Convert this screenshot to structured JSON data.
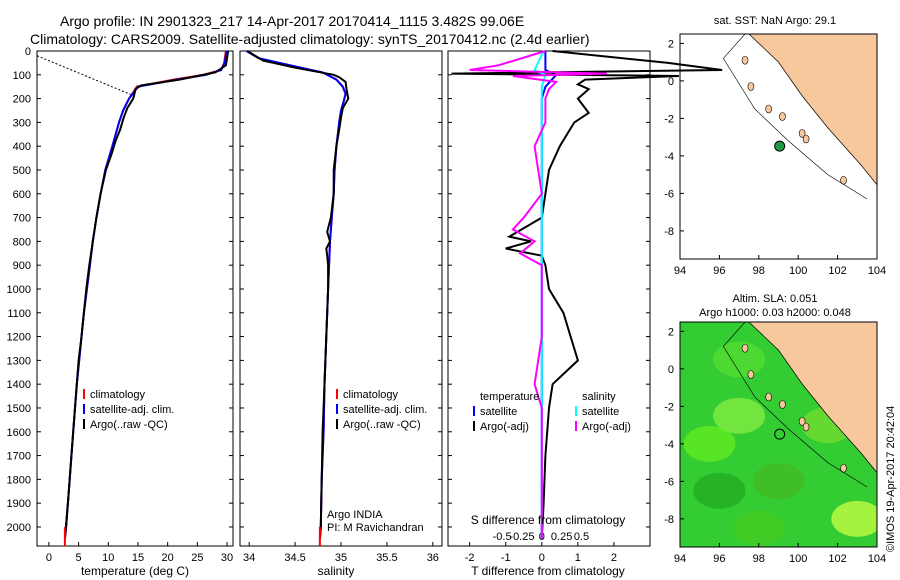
{
  "header": {
    "title_line1": "Argo profile: IN 2901323_217 14-Apr-2017 20170414_1115 3.482S 99.06E",
    "title_line2": "Climatology: CARS2009. Satellite-adjusted climatology: synTS_20170412.nc (2.4d earlier)"
  },
  "footer_credit": "©IMOS 19-Apr-2017 20:42:04",
  "colors": {
    "climatology": "#ff0000",
    "satellite": "#0000ff",
    "argo": "#000000",
    "salinity_satellite": "#00ffff",
    "salinity_argo": "#ff00ff",
    "land": "#f7c89b",
    "ocean_sla": "#33cc33",
    "float_marker": "#229944"
  },
  "chart_data": [
    {
      "type": "line",
      "id": "temperature",
      "xlabel": "temperature (deg C)",
      "ylim": [
        2080,
        0
      ],
      "xlim": [
        -2,
        31
      ],
      "xticks": [
        0,
        5,
        10,
        15,
        20,
        25,
        30
      ],
      "yticks": [
        0,
        100,
        200,
        300,
        400,
        500,
        600,
        700,
        800,
        900,
        1000,
        1100,
        1200,
        1300,
        1400,
        1500,
        1600,
        1700,
        1800,
        1900,
        2000
      ],
      "legend": [
        "climatology",
        "satellite-adj. clim.",
        "Argo(..raw -QC)"
      ],
      "series": [
        {
          "name": "climatology",
          "depth": [
            0,
            50,
            80,
            100,
            120,
            150,
            200,
            250,
            300,
            400,
            500,
            600,
            700,
            800,
            900,
            1000,
            1100,
            1200,
            1300,
            1400,
            1500,
            1600,
            1800,
            2000,
            2050
          ],
          "values": [
            29.8,
            29.5,
            29,
            26,
            21,
            14.8,
            13.5,
            12.5,
            11.8,
            10.7,
            9.5,
            8.7,
            8.0,
            7.4,
            6.9,
            6.4,
            5.9,
            5.5,
            5.1,
            4.7,
            4.4,
            4.1,
            3.5,
            2.9,
            2.7
          ]
        },
        {
          "name": "satellite-adj. clim.",
          "depth": [
            0,
            50,
            80,
            100,
            120,
            150,
            200,
            250,
            300,
            400,
            500,
            600,
            700,
            800,
            900,
            1000,
            1100,
            1200,
            1300,
            1400,
            1500,
            1600,
            1800,
            2000,
            2050
          ],
          "values": [
            29.9,
            29.6,
            29,
            26.5,
            21.5,
            15,
            13.5,
            12.5,
            11.8,
            10.7,
            9.5,
            8.7,
            8.0,
            7.4,
            6.9,
            6.4,
            5.9,
            5.5,
            5.1,
            4.7,
            4.4,
            4.1,
            3.5,
            2.9,
            2.7
          ]
        },
        {
          "name": "Argo(..raw -QC)",
          "depth": [
            0,
            60,
            90,
            120,
            145,
            160,
            200,
            240,
            280,
            330,
            380,
            430,
            500,
            600,
            700,
            800,
            900,
            1000,
            1100,
            1200,
            1300,
            1400,
            1500,
            1700,
            1900,
            2050
          ],
          "values": [
            30.2,
            29.8,
            28,
            22,
            15.5,
            14.6,
            14.2,
            13.2,
            12.6,
            12.0,
            11.2,
            10.6,
            9.6,
            8.7,
            8.0,
            7.4,
            6.8,
            6.3,
            5.9,
            5.5,
            5.0,
            4.7,
            4.4,
            3.8,
            3.2,
            2.7
          ]
        }
      ],
      "annotation_line": {
        "from": [
          -2,
          20
        ],
        "to": [
          14.5,
          190
        ]
      }
    },
    {
      "type": "line",
      "id": "salinity",
      "xlabel": "salinity",
      "ylim": [
        2080,
        0
      ],
      "xlim": [
        33.9,
        36.1
      ],
      "xticks": [
        34,
        34.5,
        35,
        35.5,
        36
      ],
      "xtick_labels": [
        "34",
        "34.5",
        "35",
        "35.5",
        "36"
      ],
      "legend": [
        "climatology",
        "satellite-adj. clim.",
        "Argo(..raw -QC)"
      ],
      "annotations": [
        "Argo INDIA",
        "PI: M Ravichandran"
      ],
      "series": [
        {
          "name": "climatology",
          "depth": [
            0,
            30,
            60,
            90,
            120,
            150,
            180,
            210,
            250,
            300,
            400,
            500,
            600,
            700,
            800,
            900,
            1000,
            1200,
            1400,
            1600,
            1800,
            2000,
            2050
          ],
          "values": [
            33.98,
            34.1,
            34.4,
            34.8,
            34.95,
            35.02,
            35.05,
            35.03,
            35.0,
            34.98,
            34.95,
            34.93,
            34.92,
            34.9,
            34.88,
            34.87,
            34.86,
            34.84,
            34.82,
            34.81,
            34.79,
            34.78,
            34.77
          ]
        },
        {
          "name": "satellite-adj. clim.",
          "depth": [
            0,
            30,
            60,
            90,
            120,
            150,
            180,
            210,
            250,
            300,
            400,
            500,
            600,
            700,
            800,
            900,
            1000,
            1200,
            1400,
            1600,
            1800,
            2000,
            2050
          ],
          "values": [
            33.97,
            34.1,
            34.45,
            34.8,
            34.95,
            35.02,
            35.05,
            35.03,
            35.0,
            34.98,
            34.95,
            34.93,
            34.92,
            34.9,
            34.88,
            34.87,
            34.86,
            34.84,
            34.82,
            34.81,
            34.79,
            34.78,
            34.77
          ]
        },
        {
          "name": "Argo(..raw -QC)",
          "depth": [
            0,
            40,
            70,
            100,
            110,
            130,
            160,
            200,
            240,
            280,
            330,
            400,
            500,
            600,
            700,
            760,
            800,
            830,
            860,
            900,
            1000,
            1200,
            1400,
            1600,
            1800,
            2000,
            2050
          ],
          "values": [
            33.98,
            34.15,
            34.5,
            34.92,
            34.98,
            35.05,
            35.06,
            35.08,
            35.02,
            35.0,
            34.98,
            34.95,
            34.92,
            34.92,
            34.89,
            34.85,
            34.88,
            34.84,
            34.85,
            34.86,
            34.86,
            34.84,
            34.82,
            34.8,
            34.79,
            34.78,
            34.77
          ]
        }
      ]
    },
    {
      "type": "line",
      "id": "difference",
      "xlabel": "T difference from climatology",
      "top_axis_label": "S difference from climatology",
      "ylim": [
        2080,
        0
      ],
      "xlim": [
        -2.6,
        3.0
      ],
      "xticks": [
        -2,
        -1,
        0,
        1,
        2
      ],
      "top_ticks": [
        "-0.5",
        "-0.25",
        "0",
        "0.25",
        "0.5"
      ],
      "legend_temperature": [
        "temperature",
        "satellite",
        "Argo(-adj)"
      ],
      "legend_salinity": [
        "salinity",
        "satellite",
        "Argo(-adj)"
      ],
      "series": [
        {
          "name": "T satellite",
          "depth": [
            0,
            80,
            100,
            150,
            200,
            400,
            800,
            1200,
            1600,
            2050
          ],
          "values": [
            0.1,
            0.1,
            0.4,
            0.1,
            0,
            0,
            0,
            0,
            0,
            0
          ]
        },
        {
          "name": "T Argo(-adj)",
          "depth": [
            0,
            50,
            80,
            95,
            105,
            120,
            140,
            160,
            200,
            260,
            300,
            400,
            500,
            600,
            700,
            780,
            800,
            830,
            860,
            900,
            1000,
            1100,
            1200,
            1300,
            1400,
            1500,
            1700,
            1900,
            2050
          ],
          "values": [
            0.3,
            3.5,
            5.0,
            -2.5,
            3.8,
            1.2,
            1.0,
            1.3,
            1.0,
            1.3,
            0.9,
            0.5,
            0.2,
            0.1,
            0,
            -0.9,
            -0.3,
            -1.0,
            0.0,
            0.1,
            0.2,
            0.6,
            0.8,
            1.0,
            0.3,
            0.2,
            0.1,
            0.05,
            0
          ]
        },
        {
          "name": "S satellite",
          "depth": [
            0,
            80,
            100,
            150,
            200,
            400,
            800,
            1200,
            1600,
            2050
          ],
          "values": [
            0.05,
            -0.2,
            0.1,
            0,
            0,
            0,
            0,
            0,
            0,
            0
          ]
        },
        {
          "name": "S Argo(-adj)",
          "depth": [
            0,
            60,
            80,
            95,
            105,
            130,
            160,
            200,
            300,
            400,
            500,
            600,
            700,
            750,
            800,
            850,
            900,
            1000,
            1200,
            1400,
            1500,
            1700,
            1900,
            2050
          ],
          "values": [
            0.1,
            -1.2,
            -2.0,
            1.8,
            -0.8,
            0.4,
            0.2,
            0.1,
            0.1,
            -0.2,
            -0.1,
            0,
            -0.5,
            -0.8,
            -0.2,
            -0.6,
            0,
            0,
            0,
            -0.2,
            0,
            0,
            0,
            0
          ]
        }
      ]
    },
    {
      "type": "scatter",
      "id": "location_map",
      "title": "sat. SST: NaN Argo: 29.1",
      "xlim": [
        94,
        104
      ],
      "ylim": [
        -9.5,
        2.5
      ],
      "xticks": [
        94,
        96,
        98,
        100,
        102,
        104
      ],
      "yticks": [
        2,
        0,
        -2,
        -4,
        -6,
        -8
      ],
      "float_position": {
        "lon": 99.06,
        "lat": -3.482
      }
    },
    {
      "type": "heatmap",
      "id": "sla_map",
      "title_line1": "Altim. SLA: 0.051",
      "title_line2": "Argo h1000: 0.03 h2000: 0.048",
      "xlim": [
        94,
        104
      ],
      "ylim": [
        -9.5,
        2.5
      ],
      "xticks": [
        94,
        96,
        98,
        100,
        102,
        104
      ],
      "yticks": [
        2,
        0,
        -2,
        -4,
        -6,
        -8
      ],
      "float_position": {
        "lon": 99.06,
        "lat": -3.482
      }
    }
  ]
}
